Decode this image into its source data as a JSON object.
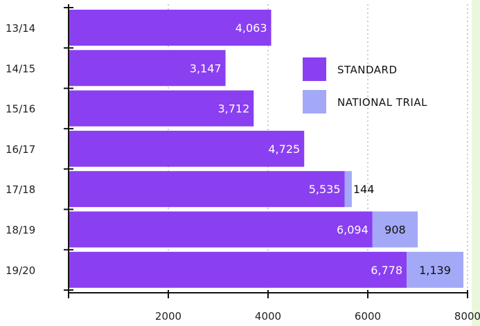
{
  "chart_data": {
    "type": "bar",
    "orientation": "horizontal",
    "stacked": true,
    "categories": [
      "13/14",
      "14/15",
      "15/16",
      "16/17",
      "17/18",
      "18/19",
      "19/20"
    ],
    "series": [
      {
        "name": "Standard",
        "values": [
          4063,
          3147,
          3712,
          4725,
          5535,
          6094,
          6778
        ],
        "labels": [
          "4,063",
          "3,147",
          "3,712",
          "4,725",
          "5,535",
          "6,094",
          "6,778"
        ],
        "color": "#8a3ff1"
      },
      {
        "name": "National Trial",
        "values": [
          0,
          0,
          0,
          0,
          144,
          908,
          1139
        ],
        "labels": [
          "",
          "",
          "",
          "",
          "144",
          "908",
          "1,139"
        ],
        "color": "#a3a8f7"
      }
    ],
    "x_ticks": [
      2000,
      4000,
      6000,
      8000
    ],
    "xlim": [
      0,
      8000
    ],
    "grid": "vertical dotted",
    "legend_position": "top-right"
  }
}
